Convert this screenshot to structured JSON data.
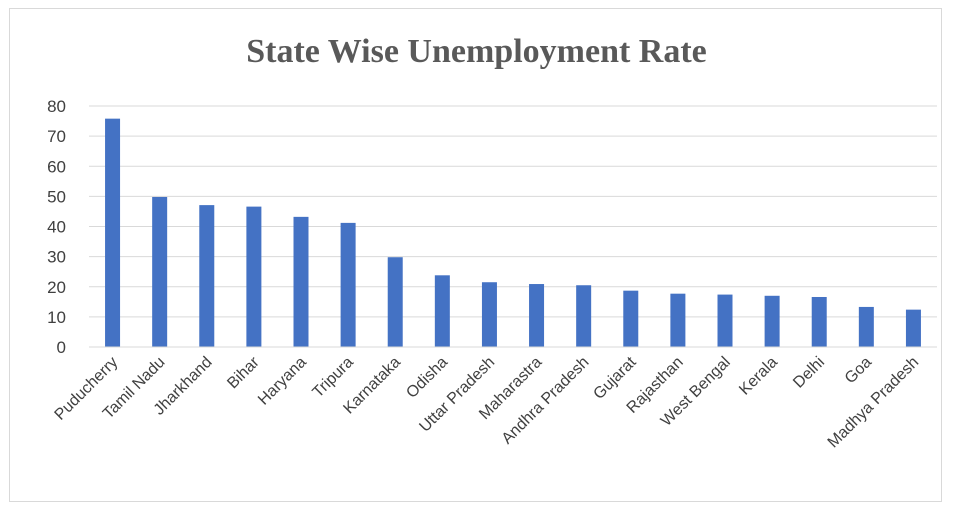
{
  "chart_data": {
    "type": "bar",
    "title": "State Wise Unemployment Rate",
    "xlabel": "",
    "ylabel": "",
    "ylim": [
      0,
      80
    ],
    "yticks": [
      0,
      10,
      20,
      30,
      40,
      50,
      60,
      70,
      80
    ],
    "grid": true,
    "legend": "none",
    "bar_color": "#4472c4",
    "categories": [
      "Puducherry",
      "Tamil Nadu",
      "Jharkhand",
      "Bihar",
      "Haryana",
      "Tripura",
      "Karnataka",
      "Odisha",
      "Uttar Pradesh",
      "Maharastra",
      "Andhra Pradesh",
      "Gujarat",
      "Rajasthan",
      "West Bengal",
      "Kerala",
      "Delhi",
      "Goa",
      "Madhya Pradesh"
    ],
    "values": [
      75.8,
      49.8,
      47.1,
      46.6,
      43.2,
      41.2,
      29.8,
      23.8,
      21.5,
      20.9,
      20.5,
      18.7,
      17.7,
      17.4,
      17.0,
      16.6,
      13.3,
      12.4
    ]
  }
}
